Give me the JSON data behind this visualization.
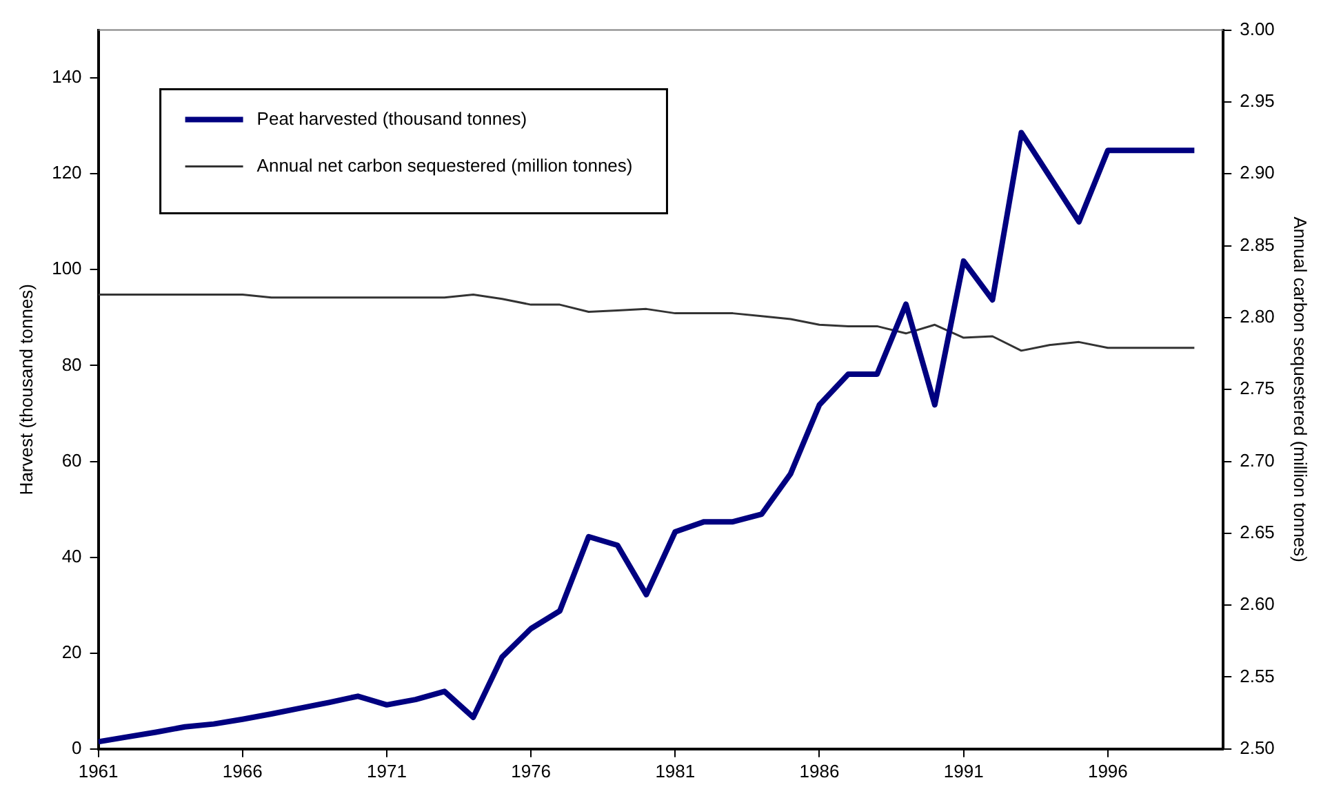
{
  "chart_data": {
    "type": "line",
    "x": [
      1961,
      1962,
      1963,
      1964,
      1965,
      1966,
      1967,
      1968,
      1969,
      1970,
      1971,
      1972,
      1973,
      1974,
      1975,
      1976,
      1977,
      1978,
      1979,
      1980,
      1981,
      1982,
      1983,
      1984,
      1985,
      1986,
      1987,
      1988,
      1989,
      1990,
      1991,
      1992,
      1993,
      1994,
      1995,
      1996,
      1997,
      1998,
      1999
    ],
    "series": [
      {
        "name": "Peat harvested (thousand tonnes)",
        "color": "#000080",
        "values": [
          1.5,
          2.5,
          3.5,
          4.6,
          5.2,
          6.2,
          7.3,
          8.5,
          9.7,
          11,
          9.2,
          10.3,
          12,
          6.6,
          19.2,
          25.1,
          28.8,
          44.3,
          42.5,
          32.2,
          45.3,
          47.4,
          47.4,
          49,
          57.4,
          71.8,
          78.2,
          78.2,
          92.8,
          71.8,
          101.8,
          93.7,
          128.6,
          119.3,
          110,
          124.9,
          124.9,
          124.9,
          124.9
        ]
      },
      {
        "name": "Annual net carbon sequestered (million tonnes)",
        "color": "#333333",
        "axis": "y2",
        "values": [
          2.816,
          2.816,
          2.816,
          2.816,
          2.816,
          2.816,
          2.814,
          2.814,
          2.814,
          2.814,
          2.814,
          2.814,
          2.814,
          2.816,
          2.813,
          2.809,
          2.809,
          2.804,
          2.805,
          2.806,
          2.803,
          2.803,
          2.803,
          2.801,
          2.799,
          2.795,
          2.794,
          2.794,
          2.789,
          2.795,
          2.786,
          2.787,
          2.777,
          2.781,
          2.783,
          2.779,
          2.779,
          2.779,
          2.779
        ]
      }
    ],
    "xlim": [
      1961,
      2000
    ],
    "xticks": [
      1961,
      1966,
      1971,
      1976,
      1981,
      1986,
      1991,
      1996
    ],
    "ylim": [
      0,
      150
    ],
    "yticks": [
      0,
      20,
      40,
      60,
      80,
      100,
      120,
      140
    ],
    "y2lim": [
      2.5,
      3.0
    ],
    "y2ticks": [
      {
        "value": 2.5,
        "label": "2.50"
      },
      {
        "value": 2.55,
        "label": "2.55"
      },
      {
        "value": 2.6,
        "label": "2.60"
      },
      {
        "value": 2.65,
        "label": "2.65"
      },
      {
        "value": 2.7,
        "label": "2.70"
      },
      {
        "value": 2.75,
        "label": "2.75"
      },
      {
        "value": 2.8,
        "label": "2.80"
      },
      {
        "value": 2.85,
        "label": "2.85"
      },
      {
        "value": 2.9,
        "label": "2.90"
      },
      {
        "value": 2.95,
        "label": "2.95"
      },
      {
        "value": 3.0,
        "label": "3.00"
      }
    ],
    "ylabel": "Harvest (thousand tonnes)",
    "y2label": "Annual carbon sequestered (million tonnes)",
    "legend": "top left",
    "grid": false,
    "marker": "none",
    "line_style": "solid"
  }
}
